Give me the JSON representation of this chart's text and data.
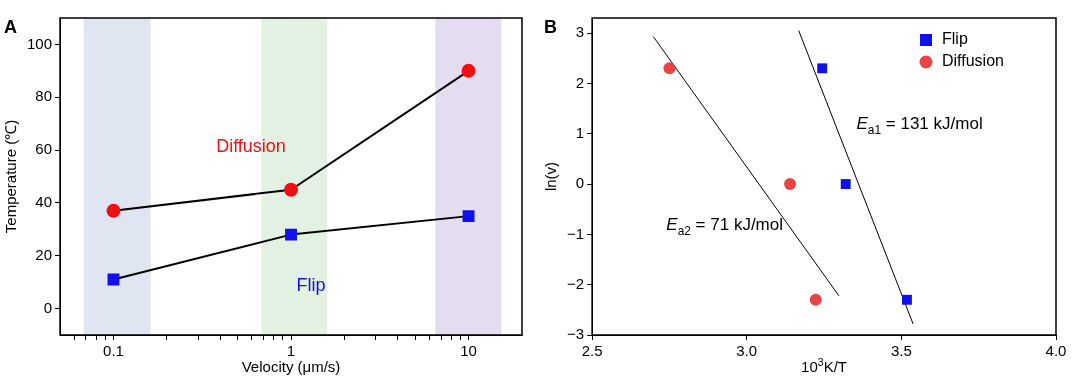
{
  "chart_data": [
    {
      "type": "line",
      "title": "A",
      "xlabel": "Velocity (μm/s)",
      "ylabel": "Temperature (℃)",
      "log": "x",
      "x": [
        0.1,
        1,
        10
      ],
      "series": [
        {
          "name": "Diffusion",
          "color": "#ee1111",
          "marker": "circle",
          "values": [
            37,
            45,
            90
          ]
        },
        {
          "name": "Flip",
          "color": "#1111ee",
          "marker": "square",
          "values": [
            11,
            28,
            35
          ]
        }
      ],
      "xlim": [
        0.05,
        20
      ],
      "xticks": [
        {
          "value": 0.06,
          "label": null
        },
        {
          "value": 0.07,
          "label": null
        },
        {
          "value": 0.08,
          "label": null
        },
        {
          "value": 0.09,
          "label": null
        },
        0.1,
        {
          "value": 0.2,
          "label": null
        },
        {
          "value": 0.3,
          "label": null
        },
        {
          "value": 0.4,
          "label": null
        },
        {
          "value": 0.5,
          "label": null
        },
        {
          "value": 0.6,
          "label": null
        },
        {
          "value": 0.7,
          "label": null
        },
        {
          "value": 0.8,
          "label": null
        },
        {
          "value": 0.9,
          "label": null
        },
        1,
        {
          "value": 2,
          "label": null
        },
        {
          "value": 3,
          "label": null
        },
        {
          "value": 4,
          "label": null
        },
        {
          "value": 5,
          "label": null
        },
        {
          "value": 6,
          "label": null
        },
        {
          "value": 7,
          "label": null
        },
        {
          "value": 8,
          "label": null
        },
        {
          "value": 9,
          "label": null
        },
        10
      ],
      "ylim": [
        -10,
        110
      ],
      "yticks": [
        0,
        20,
        40,
        60,
        80,
        100
      ],
      "bands": [
        {
          "axis": "x",
          "from": 0.068,
          "to": 0.162,
          "color": "#dfe6f1"
        },
        {
          "axis": "x",
          "from": 0.68,
          "to": 1.6,
          "color": "#e3f1e2"
        },
        {
          "axis": "x",
          "from": 6.5,
          "to": 15.3,
          "color": "#e4ddef"
        }
      ],
      "grid": false,
      "legend": false
    },
    {
      "type": "scatter",
      "title": "B",
      "xlabel": "10$^{3}$K/T",
      "ylabel": "ln(v)",
      "series": [
        {
          "name": "Flip",
          "color": "#1111ee",
          "marker": "square",
          "x": [
            3.244,
            3.32,
            3.518
          ],
          "values": [
            2.3,
            0,
            -2.3
          ]
        },
        {
          "name": "Diffusion",
          "color": "#e84444",
          "marker": "circle",
          "x": [
            2.75,
            3.14,
            3.223
          ],
          "values": [
            2.3,
            0,
            -2.3
          ]
        },
        {
          "type": "line",
          "color": "#000000",
          "marker": "none",
          "x": [
            3.168,
            3.538
          ],
          "values": [
            3.05,
            -2.78
          ]
        },
        {
          "type": "line",
          "color": "#000000",
          "marker": "none",
          "x": [
            2.698,
            3.298
          ],
          "values": [
            2.93,
            -2.22
          ]
        }
      ],
      "xlim": [
        2.5,
        4
      ],
      "xticks": [
        2.5,
        {
          "value": 3,
          "label": "3.0"
        },
        3.5,
        {
          "value": 4,
          "label": "4.0"
        }
      ],
      "ylim": [
        -3,
        3.3
      ],
      "yticks": [
        {
          "value": -3,
          "label": "−3"
        },
        {
          "value": -2,
          "label": "−2"
        },
        {
          "value": -1,
          "label": "−1"
        },
        0,
        1,
        2,
        3
      ],
      "annotations": [
        "E$_{a1}$ = 131 kJ/mol",
        "E$_{a2}$ = 71 kJ/mol"
      ],
      "grid": false,
      "legend": "top right"
    }
  ]
}
